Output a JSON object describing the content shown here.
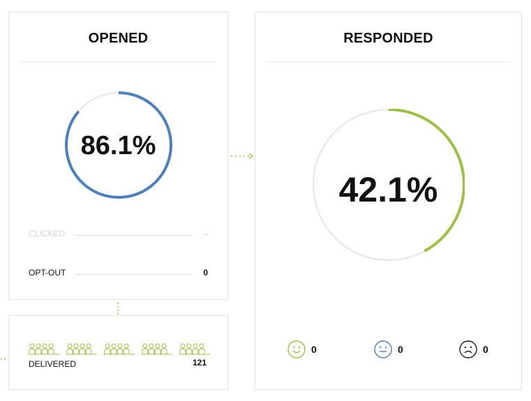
{
  "opened": {
    "title": "OPENED",
    "percent_label": "86.1%",
    "percent": 86.1,
    "ring_color": "#4a7fc1",
    "metrics": [
      {
        "label": "CLICKED",
        "value": "–",
        "disabled": true
      },
      {
        "label": "OPT-OUT",
        "value": "0",
        "disabled": false
      }
    ]
  },
  "delivered": {
    "label": "DELIVERED",
    "value": "121",
    "icon": "people-group-icon",
    "icon_color": "#9bc23c"
  },
  "responded": {
    "title": "RESPONDED",
    "percent_label": "42.1%",
    "percent": 42.1,
    "ring_color": "#9bc23c",
    "sentiments": [
      {
        "icon": "happy-face-icon",
        "color": "#9bc23c",
        "count": "0"
      },
      {
        "icon": "neutral-face-icon",
        "color": "#4a7fc1",
        "count": "0"
      },
      {
        "icon": "sad-face-icon",
        "color": "#222222",
        "count": "0"
      }
    ]
  },
  "colors": {
    "track": "#e6e6e6",
    "connector": "#9bc23c",
    "disabled_text": "#d4d4d4"
  }
}
